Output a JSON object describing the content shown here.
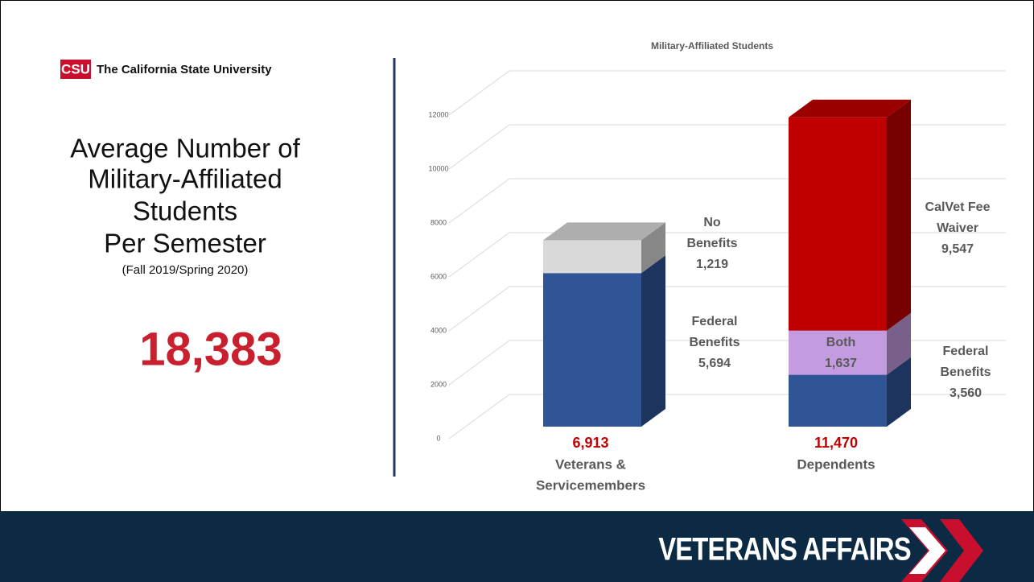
{
  "logo": {
    "mark": "CSU",
    "name": "The California State University"
  },
  "title_lines": [
    "Average Number of",
    "Military-Affiliated",
    "Students",
    "Per Semester"
  ],
  "subtitle": "(Fall 2019/Spring 2020)",
  "total": "18,383",
  "footer": "VETERANS AFFAIRS",
  "chart_data": {
    "type": "bar",
    "stacked": true,
    "title": "Military-Affiliated Students",
    "categories": [
      [
        "Veterans &",
        "Servicemembers"
      ],
      [
        "Dependents"
      ]
    ],
    "series": [
      {
        "color": "#2f5597",
        "values": [
          5694,
          1923
        ]
      },
      {
        "color": "#d9d9d9",
        "values": [
          1219,
          null
        ]
      },
      {
        "color": "#c39be0",
        "values": [
          null,
          1637
        ]
      },
      {
        "color": "#c00000",
        "values": [
          null,
          7910
        ]
      }
    ],
    "totals": [
      "6,913",
      "11,470"
    ],
    "annotations": [
      [
        "No",
        "Benefits",
        "1,219"
      ],
      [
        "Federal",
        "Benefits",
        "5,694"
      ],
      [
        "Both",
        "1,637"
      ],
      [
        "CalVet Fee",
        "Waiver",
        "9,547"
      ],
      [
        "Federal",
        "Benefits",
        "3,560"
      ]
    ],
    "ylim": [
      0,
      12000
    ],
    "yticks": [
      0,
      2000,
      4000,
      6000,
      8000,
      10000,
      12000
    ],
    "grid": true
  }
}
